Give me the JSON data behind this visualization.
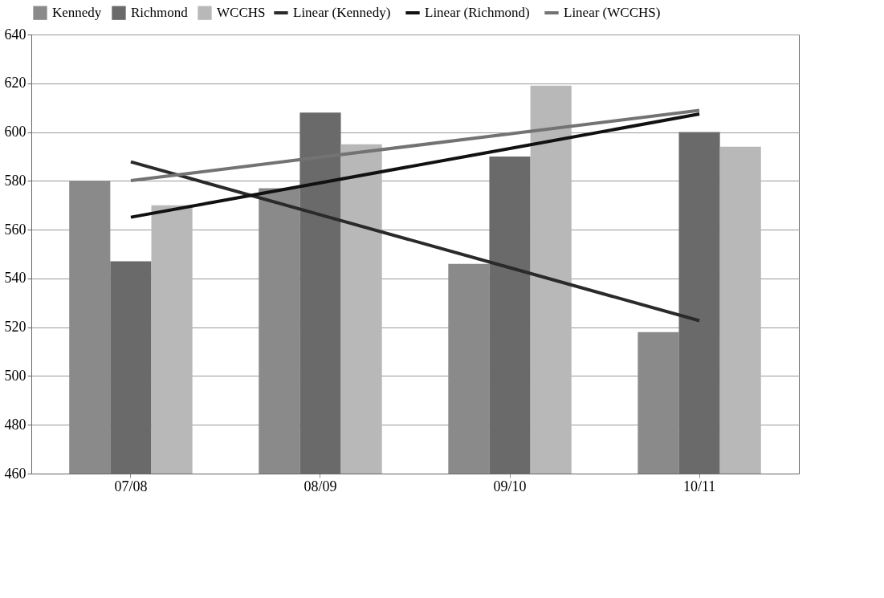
{
  "chart_data": {
    "type": "bar",
    "categories": [
      "07/08",
      "08/09",
      "09/10",
      "10/11"
    ],
    "series": [
      {
        "name": "Kennedy",
        "color": "#8a8a8a",
        "values": [
          580,
          577,
          546,
          518
        ]
      },
      {
        "name": "Richmond",
        "color": "#6a6a6a",
        "values": [
          547,
          608,
          590,
          600
        ]
      },
      {
        "name": "WCCHS",
        "color": "#b8b8b8",
        "values": [
          570,
          595,
          619,
          594
        ]
      },
      {
        "name": "Linear (Kennedy)",
        "type": "line",
        "color": "#2a2a2a",
        "values": [
          587.8,
          566.1,
          544.4,
          522.7
        ]
      },
      {
        "name": "Linear (Richmond)",
        "type": "line",
        "color": "#111111",
        "values": [
          565.1,
          579.2,
          593.3,
          607.4
        ]
      },
      {
        "name": "Linear (WCCHS)",
        "type": "line",
        "color": "#737373",
        "values": [
          580.1,
          589.7,
          599.3,
          608.9
        ]
      }
    ],
    "ylim": [
      460,
      640
    ],
    "yticks": [
      460,
      480,
      500,
      520,
      540,
      560,
      580,
      600,
      620,
      640
    ],
    "grid": "y",
    "legend": "top"
  }
}
